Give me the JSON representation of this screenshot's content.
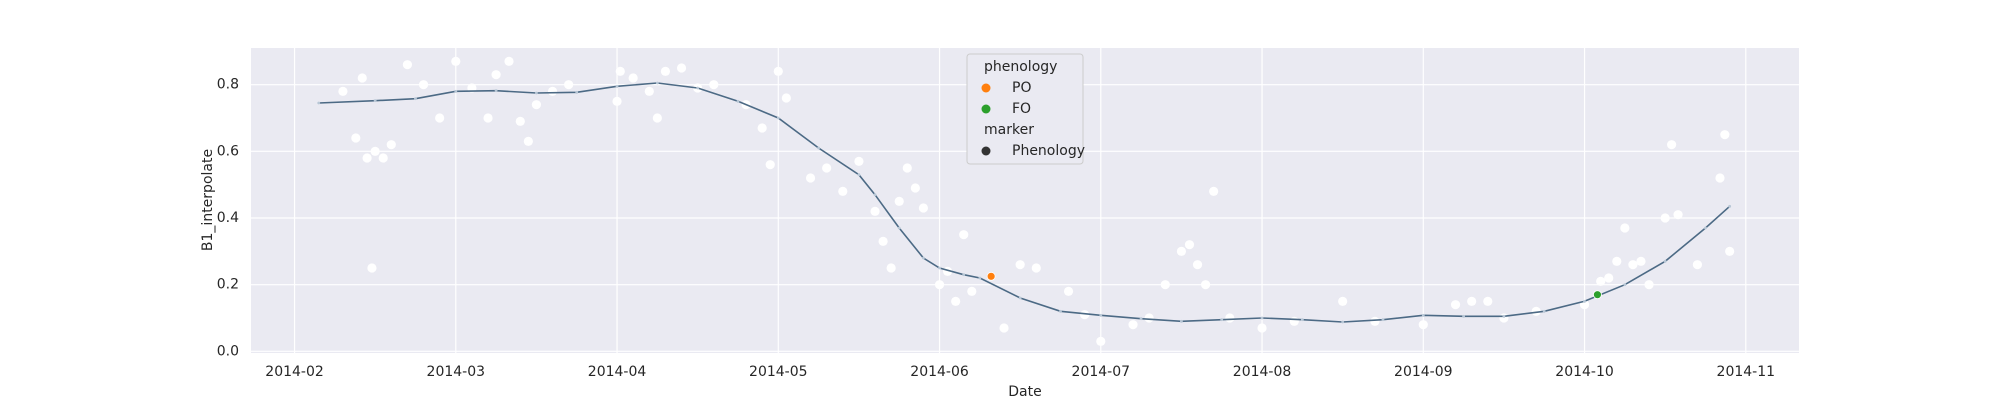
{
  "chart_data": {
    "type": "scatter",
    "xlabel": "Date",
    "ylabel": "B1_interpolate",
    "xlim": [
      1.73,
      11.33
    ],
    "ylim": [
      -0.005,
      0.91
    ],
    "xticks": [
      {
        "value": 2,
        "label": "2014-02"
      },
      {
        "value": 3,
        "label": "2014-03"
      },
      {
        "value": 4,
        "label": "2014-04"
      },
      {
        "value": 5,
        "label": "2014-05"
      },
      {
        "value": 6,
        "label": "2014-06"
      },
      {
        "value": 7,
        "label": "2014-07"
      },
      {
        "value": 8,
        "label": "2014-08"
      },
      {
        "value": 9,
        "label": "2014-09"
      },
      {
        "value": 10,
        "label": "2014-10"
      },
      {
        "value": 11,
        "label": "2014-11"
      }
    ],
    "yticks": [
      {
        "value": 0,
        "label": "0.0"
      },
      0.2,
      0.4,
      0.6,
      0.8
    ],
    "grid": true,
    "background": "#eaeaf2",
    "series": [
      {
        "kind": "points",
        "color": "#ffffff",
        "x": [
          2.3,
          2.38,
          2.42,
          2.45,
          2.48,
          2.5,
          2.55,
          2.6,
          2.7,
          2.8,
          2.9,
          3.0,
          3.1,
          3.2,
          3.25,
          3.33,
          3.4,
          3.45,
          3.5,
          3.6,
          3.7,
          4.0,
          4.02,
          4.1,
          4.2,
          4.25,
          4.3,
          4.4,
          4.5,
          4.6,
          4.8,
          4.9,
          4.95,
          5.0,
          5.05,
          5.2,
          5.3,
          5.4,
          5.5,
          5.6,
          5.65,
          5.7,
          5.75,
          5.8,
          5.85,
          5.9,
          6.0,
          6.05,
          6.1,
          6.15,
          6.2,
          6.4,
          6.5,
          6.6,
          6.8,
          6.9,
          7.0,
          7.2,
          7.3,
          7.4,
          7.5,
          7.55,
          7.6,
          7.65,
          7.7,
          7.8,
          8.0,
          8.2,
          8.5,
          8.7,
          9.0,
          9.2,
          9.3,
          9.4,
          9.5,
          9.7,
          10.0,
          10.1,
          10.15,
          10.2,
          10.25,
          10.3,
          10.35,
          10.4,
          10.5,
          10.54,
          10.58,
          10.7,
          10.84,
          10.87,
          10.9
        ],
        "values": [
          0.78,
          0.64,
          0.82,
          0.58,
          0.25,
          0.6,
          0.58,
          0.62,
          0.86,
          0.8,
          0.7,
          0.87,
          0.79,
          0.7,
          0.83,
          0.87,
          0.69,
          0.63,
          0.74,
          0.78,
          0.8,
          0.75,
          0.84,
          0.82,
          0.78,
          0.7,
          0.84,
          0.85,
          0.79,
          0.8,
          0.74,
          0.67,
          0.56,
          0.84,
          0.76,
          0.52,
          0.55,
          0.48,
          0.57,
          0.42,
          0.33,
          0.25,
          0.45,
          0.55,
          0.49,
          0.43,
          0.2,
          0.24,
          0.15,
          0.35,
          0.18,
          0.07,
          0.26,
          0.25,
          0.18,
          0.11,
          0.03,
          0.08,
          0.1,
          0.2,
          0.3,
          0.32,
          0.26,
          0.2,
          0.48,
          0.1,
          0.07,
          0.09,
          0.15,
          0.09,
          0.08,
          0.14,
          0.15,
          0.15,
          0.1,
          0.12,
          0.14,
          0.21,
          0.22,
          0.27,
          0.37,
          0.26,
          0.27,
          0.2,
          0.4,
          0.62,
          0.41,
          0.26,
          0.52,
          0.65,
          0.3
        ]
      },
      {
        "kind": "line",
        "color": "#4c6a85",
        "x": [
          2.15,
          2.5,
          2.75,
          3.0,
          3.25,
          3.5,
          3.75,
          4.0,
          4.25,
          4.5,
          4.75,
          5.0,
          5.25,
          5.5,
          5.6,
          5.75,
          5.9,
          6.0,
          6.15,
          6.25,
          6.5,
          6.75,
          7.0,
          7.25,
          7.5,
          7.75,
          8.0,
          8.25,
          8.5,
          8.75,
          9.0,
          9.25,
          9.5,
          9.75,
          10.0,
          10.25,
          10.5,
          10.75,
          10.9
        ],
        "values": [
          0.745,
          0.752,
          0.758,
          0.78,
          0.782,
          0.775,
          0.777,
          0.795,
          0.805,
          0.79,
          0.75,
          0.7,
          0.61,
          0.53,
          0.47,
          0.37,
          0.28,
          0.25,
          0.23,
          0.22,
          0.16,
          0.12,
          0.108,
          0.098,
          0.09,
          0.095,
          0.1,
          0.095,
          0.088,
          0.095,
          0.108,
          0.105,
          0.105,
          0.12,
          0.15,
          0.2,
          0.27,
          0.37,
          0.435
        ]
      },
      {
        "kind": "points",
        "name": "PO",
        "color": "#ff7f0e",
        "x": [
          6.32
        ],
        "values": [
          0.225
        ]
      },
      {
        "kind": "points",
        "name": "FO",
        "color": "#2ca02c",
        "x": [
          10.08
        ],
        "values": [
          0.17
        ]
      }
    ],
    "legend": {
      "hue_title": "phenology",
      "style_title": "marker",
      "style_entry": "Phenology",
      "style_color": "#333333"
    }
  }
}
